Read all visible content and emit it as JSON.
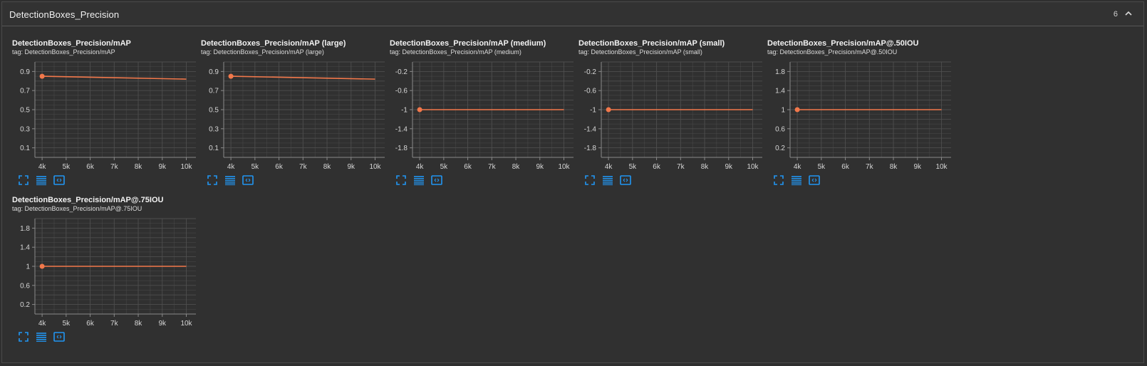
{
  "section": {
    "title": "DetectionBoxes_Precision",
    "count": "6",
    "collapse_icon": "chevron-up-icon"
  },
  "toolbar_icons": [
    "fullscreen-icon",
    "data-table-icon",
    "fit-domain-icon"
  ],
  "colors": {
    "line": "#f2784b",
    "grid": "#4e4e4e",
    "axis": "#8a8a8a",
    "icon": "#2196f3"
  },
  "chart_data": [
    {
      "type": "line",
      "title": "DetectionBoxes_Precision/mAP",
      "tag": "tag: DetectionBoxes_Precision/mAP",
      "x_ticks": [
        "4k",
        "5k",
        "6k",
        "7k",
        "8k",
        "9k",
        "10k"
      ],
      "y_ticks": [
        "0.9",
        "0.7",
        "0.5",
        "0.3",
        "0.1"
      ],
      "xlim": [
        3700,
        10400
      ],
      "ylim": [
        0,
        1
      ],
      "series": [
        {
          "x": [
            4000,
            10000
          ],
          "y": [
            0.85,
            0.82
          ]
        }
      ],
      "grid": true
    },
    {
      "type": "line",
      "title": "DetectionBoxes_Precision/mAP (large)",
      "tag": "tag: DetectionBoxes_Precision/mAP (large)",
      "x_ticks": [
        "4k",
        "5k",
        "6k",
        "7k",
        "8k",
        "9k",
        "10k"
      ],
      "y_ticks": [
        "0.9",
        "0.7",
        "0.5",
        "0.3",
        "0.1"
      ],
      "xlim": [
        3700,
        10400
      ],
      "ylim": [
        0,
        1
      ],
      "series": [
        {
          "x": [
            4000,
            10000
          ],
          "y": [
            0.85,
            0.82
          ]
        }
      ],
      "grid": true
    },
    {
      "type": "line",
      "title": "DetectionBoxes_Precision/mAP (medium)",
      "tag": "tag: DetectionBoxes_Precision/mAP (medium)",
      "x_ticks": [
        "4k",
        "5k",
        "6k",
        "7k",
        "8k",
        "9k",
        "10k"
      ],
      "y_ticks": [
        "-0.2",
        "-0.6",
        "-1",
        "-1.4",
        "-1.8"
      ],
      "xlim": [
        3700,
        10400
      ],
      "ylim": [
        -2,
        0
      ],
      "series": [
        {
          "x": [
            4000,
            10000
          ],
          "y": [
            -1,
            -1
          ]
        }
      ],
      "grid": true
    },
    {
      "type": "line",
      "title": "DetectionBoxes_Precision/mAP (small)",
      "tag": "tag: DetectionBoxes_Precision/mAP (small)",
      "x_ticks": [
        "4k",
        "5k",
        "6k",
        "7k",
        "8k",
        "9k",
        "10k"
      ],
      "y_ticks": [
        "-0.2",
        "-0.6",
        "-1",
        "-1.4",
        "-1.8"
      ],
      "xlim": [
        3700,
        10400
      ],
      "ylim": [
        -2,
        0
      ],
      "series": [
        {
          "x": [
            4000,
            10000
          ],
          "y": [
            -1,
            -1
          ]
        }
      ],
      "grid": true
    },
    {
      "type": "line",
      "title": "DetectionBoxes_Precision/mAP@.50IOU",
      "tag": "tag: DetectionBoxes_Precision/mAP@.50IOU",
      "x_ticks": [
        "4k",
        "5k",
        "6k",
        "7k",
        "8k",
        "9k",
        "10k"
      ],
      "y_ticks": [
        "1.8",
        "1.4",
        "1",
        "0.6",
        "0.2"
      ],
      "xlim": [
        3700,
        10400
      ],
      "ylim": [
        0,
        2
      ],
      "series": [
        {
          "x": [
            4000,
            10000
          ],
          "y": [
            1,
            1
          ]
        }
      ],
      "grid": true
    },
    {
      "type": "line",
      "title": "DetectionBoxes_Precision/mAP@.75IOU",
      "tag": "tag: DetectionBoxes_Precision/mAP@.75IOU",
      "x_ticks": [
        "4k",
        "5k",
        "6k",
        "7k",
        "8k",
        "9k",
        "10k"
      ],
      "y_ticks": [
        "1.8",
        "1.4",
        "1",
        "0.6",
        "0.2"
      ],
      "xlim": [
        3700,
        10400
      ],
      "ylim": [
        0,
        2
      ],
      "series": [
        {
          "x": [
            4000,
            10000
          ],
          "y": [
            1,
            1
          ]
        }
      ],
      "grid": true
    }
  ]
}
